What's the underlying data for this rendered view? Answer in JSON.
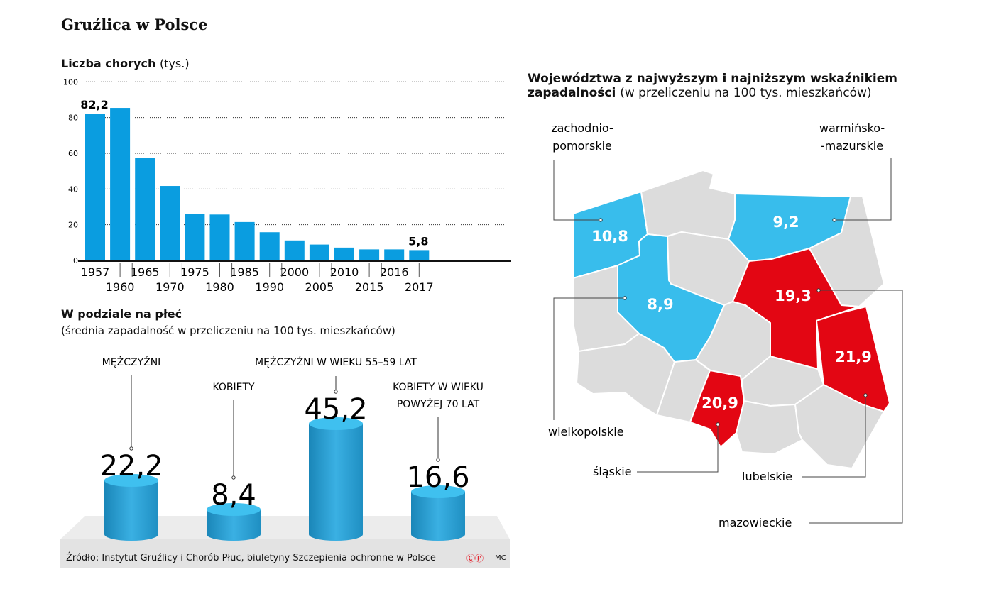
{
  "title": "Gruźlica w Polsce",
  "chart_data": [
    {
      "type": "bar",
      "title": "Liczba chorych",
      "title_unit": "(tys.)",
      "categories": [
        "1957",
        "1960",
        "1965",
        "1970",
        "1975",
        "1980",
        "1985",
        "1990",
        "2000",
        "2005",
        "2010",
        "2015",
        "2016",
        "2017"
      ],
      "values": [
        82.2,
        85.4,
        57.3,
        41.7,
        26.0,
        25.7,
        21.5,
        15.8,
        11.2,
        8.9,
        7.2,
        6.2,
        6.2,
        5.8
      ],
      "data_labels": {
        "0": "82,2",
        "13": "5,8"
      },
      "yticks": [
        "0",
        "20",
        "40",
        "60",
        "80",
        "100"
      ],
      "ylim": [
        0,
        100
      ],
      "grid": true,
      "color": "#0a9de0"
    },
    {
      "type": "bar",
      "title": "W podziale na płeć",
      "subtitle": "(średnia zapadalność w przeliczeniu na 100 tys. mieszkańców)",
      "categories": [
        "MĘŻCZYŹNI",
        "KOBIETY",
        "MĘŻCZYŹNI W WIEKU 55–59 LAT",
        "KOBIETY W WIEKU POWYŻEJ 70 LAT"
      ],
      "category_lines": [
        [
          "MĘŻCZYŹNI"
        ],
        [
          "KOBIETY"
        ],
        [
          "MĘŻCZYŹNI W WIEKU 55–59 LAT"
        ],
        [
          "KOBIETY W WIEKU",
          "POWYŻEJ 70 LAT"
        ]
      ],
      "values": [
        22.2,
        8.4,
        45.2,
        16.6
      ],
      "value_labels": [
        "22,2",
        "8,4",
        "45,2",
        "16,6"
      ],
      "color": "#2aa7dc"
    }
  ],
  "map": {
    "title_bold": "Województwa z najwyższym i najniższym wskaźnikiem",
    "title_bold2": "zapadalności",
    "title_normal": "(w przeliczeniu na 100 tys. mieszkańców)",
    "low_color": "#38bdec",
    "high_color": "#e30613",
    "other_color": "#dcdcdc",
    "regions": [
      {
        "name": "zachodniopomorskie",
        "label_lines": [
          "zachodnio-",
          "pomorskie"
        ],
        "value": "10,8",
        "level": "low"
      },
      {
        "name": "warmińsko-mazurskie",
        "label_lines": [
          "warmińsko-",
          "-mazurskie"
        ],
        "value": "9,2",
        "level": "low"
      },
      {
        "name": "wielkopolskie",
        "label_lines": [
          "wielkopolskie"
        ],
        "value": "8,9",
        "level": "low"
      },
      {
        "name": "mazowieckie",
        "label_lines": [
          "mazowieckie"
        ],
        "value": "19,3",
        "level": "high"
      },
      {
        "name": "lubelskie",
        "label_lines": [
          "lubelskie"
        ],
        "value": "21,9",
        "level": "high"
      },
      {
        "name": "śląskie",
        "label_lines": [
          "śląskie"
        ],
        "value": "20,9",
        "level": "high"
      }
    ]
  },
  "footer": {
    "source": "Źródło: Instytut Gruźlicy i Chorób Płuc, biuletyny Szczepienia ochronne w Polsce",
    "credit": "MC",
    "copyright_icons": [
      "copyright-icon",
      "phonogram-icon"
    ]
  }
}
